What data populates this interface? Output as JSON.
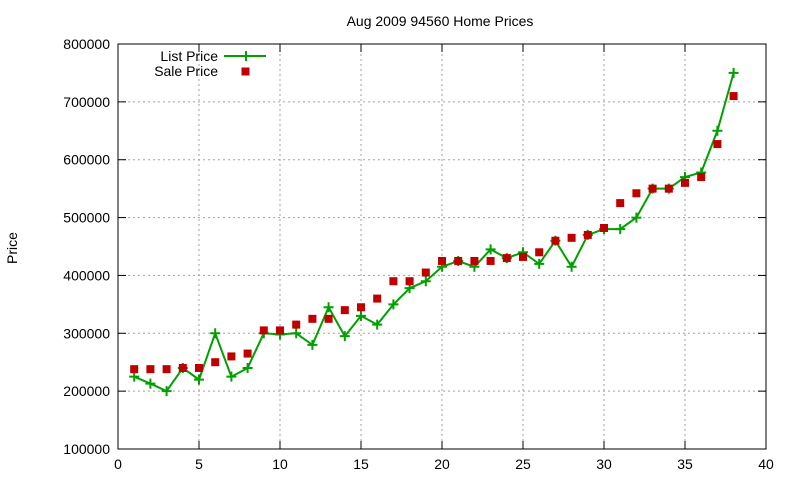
{
  "chart_data": {
    "type": "line",
    "title": "Aug 2009 94560 Home Prices",
    "xlabel": "",
    "ylabel": "Price",
    "xlim": [
      0,
      40
    ],
    "ylim": [
      100000,
      800000
    ],
    "x_ticks": [
      "0",
      "5",
      "10",
      "15",
      "20",
      "25",
      "30",
      "35",
      "40"
    ],
    "y_ticks": [
      "100000",
      "200000",
      "300000",
      "400000",
      "500000",
      "600000",
      "700000",
      "800000"
    ],
    "grid": true,
    "legend_position": "top-left",
    "series": [
      {
        "name": "List Price",
        "style": "line with plus markers",
        "color": "#00a000",
        "x": [
          1,
          2,
          3,
          4,
          5,
          6,
          7,
          8,
          9,
          10,
          11,
          12,
          13,
          14,
          15,
          16,
          17,
          18,
          19,
          20,
          21,
          22,
          23,
          24,
          25,
          26,
          27,
          28,
          29,
          30,
          31,
          32,
          33,
          34,
          35,
          36,
          37,
          38
        ],
        "y": [
          225000,
          213000,
          200000,
          240000,
          220000,
          300000,
          225000,
          240000,
          300000,
          298000,
          300000,
          280000,
          345000,
          295000,
          330000,
          315000,
          350000,
          378000,
          390000,
          415000,
          425000,
          415000,
          445000,
          430000,
          440000,
          420000,
          460000,
          415000,
          470000,
          480000,
          480000,
          500000,
          550000,
          550000,
          570000,
          578000,
          650000,
          750000
        ]
      },
      {
        "name": "Sale Price",
        "style": "square markers",
        "color": "#c00000",
        "x": [
          1,
          2,
          3,
          4,
          5,
          6,
          7,
          8,
          9,
          10,
          11,
          12,
          13,
          14,
          15,
          16,
          17,
          18,
          19,
          20,
          21,
          22,
          23,
          24,
          25,
          26,
          27,
          28,
          29,
          30,
          31,
          32,
          33,
          34,
          35,
          36,
          37,
          38
        ],
        "y": [
          238000,
          238000,
          238000,
          240000,
          240000,
          250000,
          260000,
          265000,
          305000,
          305000,
          315000,
          325000,
          325000,
          340000,
          345000,
          360000,
          390000,
          390000,
          405000,
          425000,
          425000,
          425000,
          425000,
          430000,
          432000,
          440000,
          460000,
          465000,
          470000,
          482000,
          525000,
          542000,
          550000,
          550000,
          560000,
          570000,
          627000,
          710000
        ]
      }
    ]
  }
}
